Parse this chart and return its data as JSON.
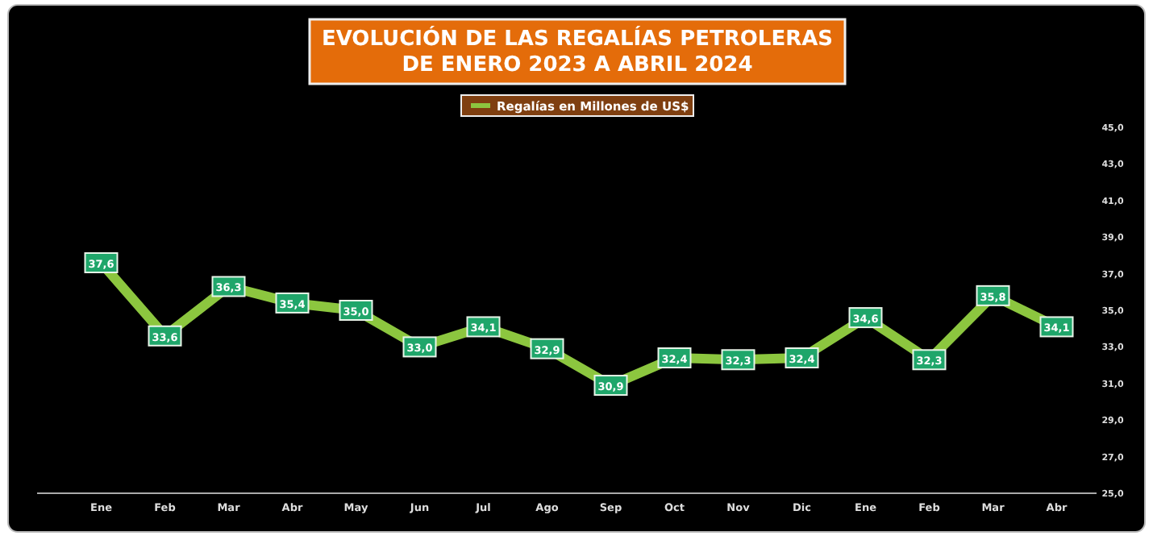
{
  "chart_data": {
    "type": "line",
    "title": "EVOLUCIÓN DE LAS REGALÍAS PETROLERAS\nDE ENERO 2023 A ABRIL 2024",
    "categories": [
      "Ene",
      "Feb",
      "Mar",
      "Abr",
      "May",
      "Jun",
      "Jul",
      "Ago",
      "Sep",
      "Oct",
      "Nov",
      "Dic",
      "Ene",
      "Feb",
      "Mar",
      "Abr"
    ],
    "series": [
      {
        "name": "Regalías en Millones de US$",
        "color": "#8cc63f",
        "values": [
          37.6,
          33.6,
          36.3,
          35.4,
          35.0,
          33.0,
          34.1,
          32.9,
          30.9,
          32.4,
          32.3,
          32.4,
          34.6,
          32.3,
          35.8,
          34.1
        ],
        "value_labels": [
          "37,6",
          "33,6",
          "36,3",
          "35,4",
          "35,0",
          "33,0",
          "34,1",
          "32,9",
          "30,9",
          "32,4",
          "32,3",
          "32,4",
          "34,6",
          "32,3",
          "35,8",
          "34,1"
        ]
      }
    ],
    "ylim": [
      25,
      45
    ],
    "yticks": [
      {
        "value": 25,
        "label": "25,0"
      },
      {
        "value": 27,
        "label": "27,0"
      },
      {
        "value": 29,
        "label": "29,0"
      },
      {
        "value": 31,
        "label": "31,0"
      },
      {
        "value": 33,
        "label": "33,0"
      },
      {
        "value": 35,
        "label": "35,0"
      },
      {
        "value": 37,
        "label": "37,0"
      },
      {
        "value": 39,
        "label": "39,0"
      },
      {
        "value": 41,
        "label": "41,0"
      },
      {
        "value": 43,
        "label": "43,0"
      },
      {
        "value": 45,
        "label": "45,0"
      }
    ],
    "grid": false,
    "legend": "top",
    "marker": "square",
    "line_style": "solid"
  }
}
